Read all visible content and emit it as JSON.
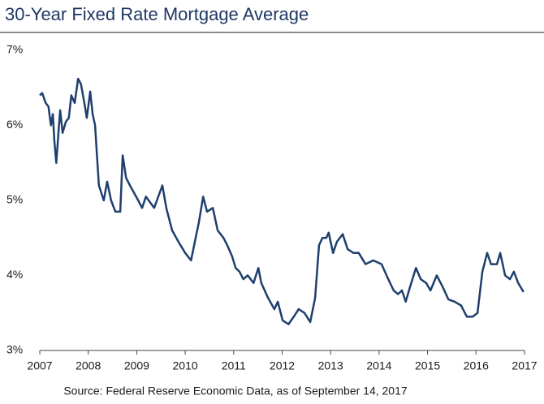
{
  "chart_data": {
    "type": "line",
    "title": "30-Year Fixed Rate Mortgage Average",
    "source": "Source: Federal Reserve Economic Data, as of September 14, 2017",
    "xlim": [
      2007,
      2017
    ],
    "xticks": [
      2007,
      2008,
      2009,
      2010,
      2011,
      2012,
      2013,
      2014,
      2015,
      2016,
      2017
    ],
    "ylim": [
      3,
      7
    ],
    "yticks": [
      {
        "value": 3,
        "label": "3%"
      },
      {
        "value": 4,
        "label": "4%"
      },
      {
        "value": 5,
        "label": "5%"
      },
      {
        "value": 6,
        "label": "6%"
      },
      {
        "value": 7,
        "label": "7%"
      }
    ],
    "grid": false,
    "series": [
      {
        "color": "#1f3f6e",
        "x": [
          2007.0,
          2007.05,
          2007.12,
          2007.18,
          2007.23,
          2007.27,
          2007.3,
          2007.34,
          2007.39,
          2007.42,
          2007.47,
          2007.54,
          2007.6,
          2007.65,
          2007.72,
          2007.79,
          2007.85,
          2007.92,
          2007.97,
          2008.04,
          2008.09,
          2008.14,
          2008.19,
          2008.22,
          2008.32,
          2008.39,
          2008.47,
          2008.56,
          2008.66,
          2008.71,
          2008.78,
          2008.86,
          2009.03,
          2009.11,
          2009.19,
          2009.36,
          2009.53,
          2009.61,
          2009.73,
          2009.86,
          2010.0,
          2010.12,
          2010.2,
          2010.28,
          2010.37,
          2010.45,
          2010.57,
          2010.67,
          2010.79,
          2010.87,
          2010.97,
          2011.04,
          2011.12,
          2011.2,
          2011.29,
          2011.41,
          2011.51,
          2011.57,
          2011.71,
          2011.84,
          2011.91,
          2012.01,
          2012.13,
          2012.24,
          2012.34,
          2012.46,
          2012.58,
          2012.68,
          2012.76,
          2012.83,
          2012.91,
          2012.96,
          2013.05,
          2013.13,
          2013.25,
          2013.35,
          2013.47,
          2013.58,
          2013.72,
          2013.88,
          2014.05,
          2014.19,
          2014.3,
          2014.39,
          2014.47,
          2014.55,
          2014.64,
          2014.76,
          2014.86,
          2014.97,
          2015.06,
          2015.19,
          2015.31,
          2015.43,
          2015.56,
          2015.69,
          2015.81,
          2015.93,
          2016.03,
          2016.13,
          2016.23,
          2016.31,
          2016.43,
          2016.5,
          2016.6,
          2016.7,
          2016.78,
          2016.87,
          2016.98
        ],
        "values": [
          6.4,
          6.43,
          6.3,
          6.25,
          6.0,
          6.15,
          5.8,
          5.5,
          5.95,
          6.2,
          5.9,
          6.05,
          6.1,
          6.4,
          6.3,
          6.62,
          6.55,
          6.3,
          6.1,
          6.45,
          6.15,
          6.0,
          5.5,
          5.2,
          5.0,
          5.25,
          5.0,
          4.85,
          4.85,
          5.6,
          5.3,
          5.2,
          5.0,
          4.9,
          5.05,
          4.9,
          5.2,
          4.9,
          4.6,
          4.45,
          4.3,
          4.2,
          4.45,
          4.7,
          5.05,
          4.85,
          4.9,
          4.6,
          4.5,
          4.4,
          4.25,
          4.1,
          4.05,
          3.95,
          4.0,
          3.9,
          4.1,
          3.9,
          3.7,
          3.55,
          3.65,
          3.4,
          3.35,
          3.45,
          3.55,
          3.5,
          3.38,
          3.7,
          4.4,
          4.5,
          4.5,
          4.57,
          4.3,
          4.45,
          4.55,
          4.35,
          4.3,
          4.3,
          4.15,
          4.2,
          4.15,
          3.95,
          3.8,
          3.75,
          3.8,
          3.65,
          3.85,
          4.1,
          3.95,
          3.9,
          3.8,
          4.0,
          3.85,
          3.68,
          3.65,
          3.6,
          3.45,
          3.45,
          3.5,
          4.05,
          4.3,
          4.15,
          4.15,
          4.3,
          4.0,
          3.95,
          4.05,
          3.9,
          3.78
        ]
      }
    ]
  }
}
